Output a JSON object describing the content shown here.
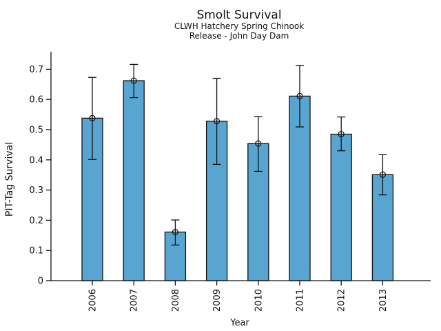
{
  "figure": {
    "title": "Smolt Survival",
    "subtitle1": "CLWH Hatchery Spring Chinook",
    "subtitle2": "Release - John Day Dam"
  },
  "chart_data": {
    "type": "bar",
    "title": "Smolt Survival",
    "subtitle": [
      "CLWH Hatchery Spring Chinook",
      "Release - John Day Dam"
    ],
    "xlabel": "Year",
    "ylabel": "PIT-Tag Survival",
    "categories": [
      "2006",
      "2007",
      "2008",
      "2009",
      "2010",
      "2011",
      "2012",
      "2013"
    ],
    "values": [
      0.538,
      0.662,
      0.161,
      0.528,
      0.454,
      0.611,
      0.485,
      0.351
    ],
    "error_low": [
      0.401,
      0.606,
      0.118,
      0.385,
      0.362,
      0.509,
      0.43,
      0.284
    ],
    "error_high": [
      0.673,
      0.716,
      0.201,
      0.67,
      0.543,
      0.713,
      0.542,
      0.417
    ],
    "y_ticks": [
      0,
      0.1,
      0.2,
      0.3,
      0.4,
      0.5,
      0.6,
      0.7
    ],
    "y_tick_labels": [
      "0",
      "0.1",
      "0.2",
      "0.3",
      "0.4",
      "0.5",
      "0.6",
      "0.7"
    ],
    "ylim": [
      0,
      0.758
    ],
    "grid": false,
    "legend": "none",
    "marker": "open-circle",
    "bar_color": "#58A5D2",
    "bar_edge_color": "#111111",
    "error_color": "#111111",
    "background_color": "#ffffff"
  }
}
